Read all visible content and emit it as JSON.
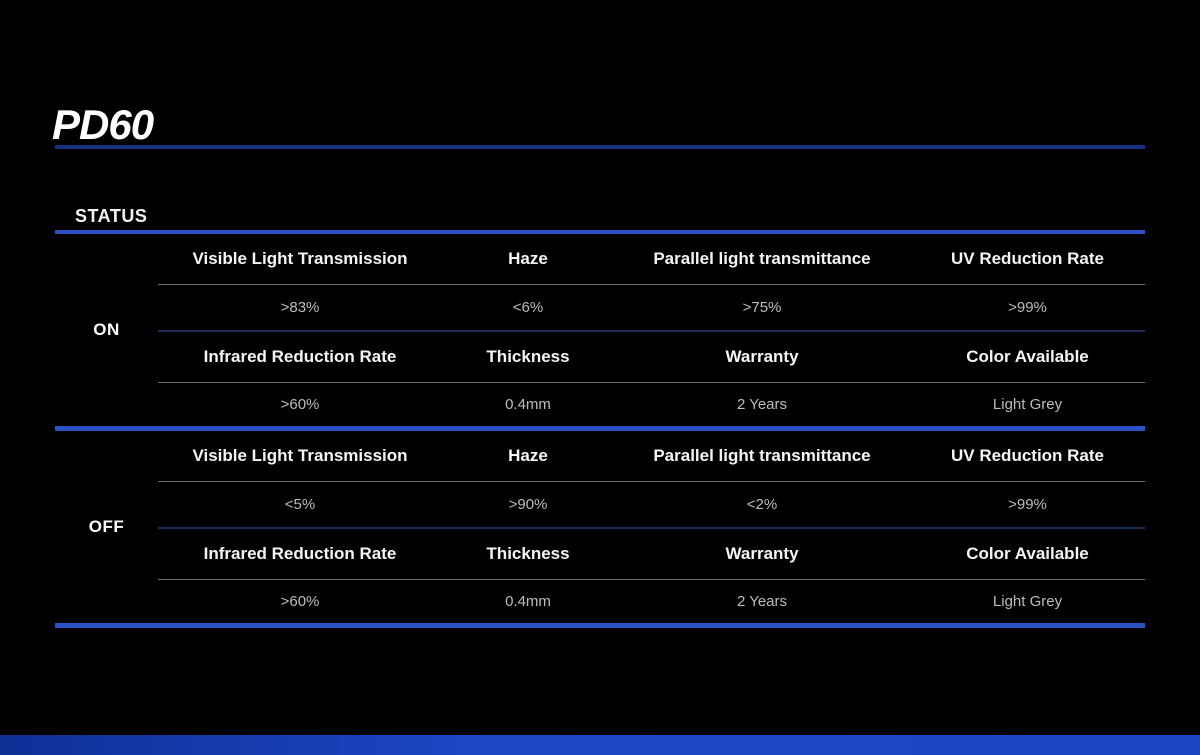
{
  "slide": {
    "title": "PD60",
    "status_heading": "STATUS"
  },
  "table": {
    "sections": [
      {
        "state": "ON",
        "rows": [
          {
            "headers": [
              "Visible Light Transmission",
              "Haze",
              "Parallel light transmittance",
              "UV Reduction Rate"
            ],
            "values": [
              ">83%",
              "<6%",
              ">75%",
              ">99%"
            ]
          },
          {
            "headers": [
              "Infrared Reduction Rate",
              "Thickness",
              "Warranty",
              "Color Available"
            ],
            "values": [
              ">60%",
              "0.4mm",
              "2 Years",
              "Light Grey"
            ]
          }
        ]
      },
      {
        "state": "OFF",
        "rows": [
          {
            "headers": [
              "Visible Light Transmission",
              "Haze",
              "Parallel light transmittance",
              "UV Reduction Rate"
            ],
            "values": [
              "<5%",
              ">90%",
              "<2%",
              ">99%"
            ]
          },
          {
            "headers": [
              "Infrared Reduction Rate",
              "Thickness",
              "Warranty",
              "Color Available"
            ],
            "values": [
              ">60%",
              "0.4mm",
              "2 Years",
              "Light Grey"
            ]
          }
        ]
      }
    ]
  },
  "colors": {
    "background": "#000000",
    "accent_blue": "#2a52c4",
    "title_rule_navy": "#1a2f80",
    "row_rule_gray": "#6e6e6e",
    "row_rule_navy": "#1e2d55",
    "bottom_bar_blue": "#1c47c4",
    "header_text": "#f5f5f5",
    "value_text": "#b9bdc2"
  }
}
